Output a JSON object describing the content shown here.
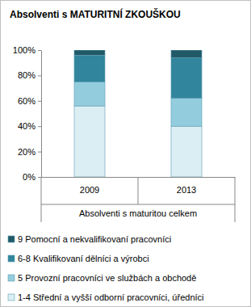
{
  "chart_data": {
    "type": "bar",
    "stacked": true,
    "title": "Absolventi s MATURITNÍ ZKOUŠKOU",
    "x_label": "Absolventi s maturitou celkem",
    "categories": [
      "2009",
      "2013"
    ],
    "series": [
      {
        "name": "1-4 Střední a vyšší odborní pracovníci, úředníci",
        "color": "#dbeef4",
        "values": [
          56,
          40
        ]
      },
      {
        "name": "5 Provozní pracovníci ve službách a obchodě",
        "color": "#93cddd",
        "values": [
          19,
          22
        ]
      },
      {
        "name": "6-8 Kvalifikovaní dělníci a výrobci",
        "color": "#31859c",
        "values": [
          21,
          32
        ]
      },
      {
        "name": "9 Pomocní a nekvalifikovaní pracovníci",
        "color": "#215968",
        "values": [
          4,
          6
        ]
      }
    ],
    "ylim": [
      0,
      100
    ],
    "yticks": [
      {
        "value": 0,
        "label": "0%"
      },
      {
        "value": 20,
        "label": "20%"
      },
      {
        "value": 40,
        "label": "40%"
      },
      {
        "value": 60,
        "label": "60%"
      },
      {
        "value": 80,
        "label": "80%"
      },
      {
        "value": 100,
        "label": "100%"
      }
    ],
    "grid": false,
    "legend": "bottom"
  }
}
